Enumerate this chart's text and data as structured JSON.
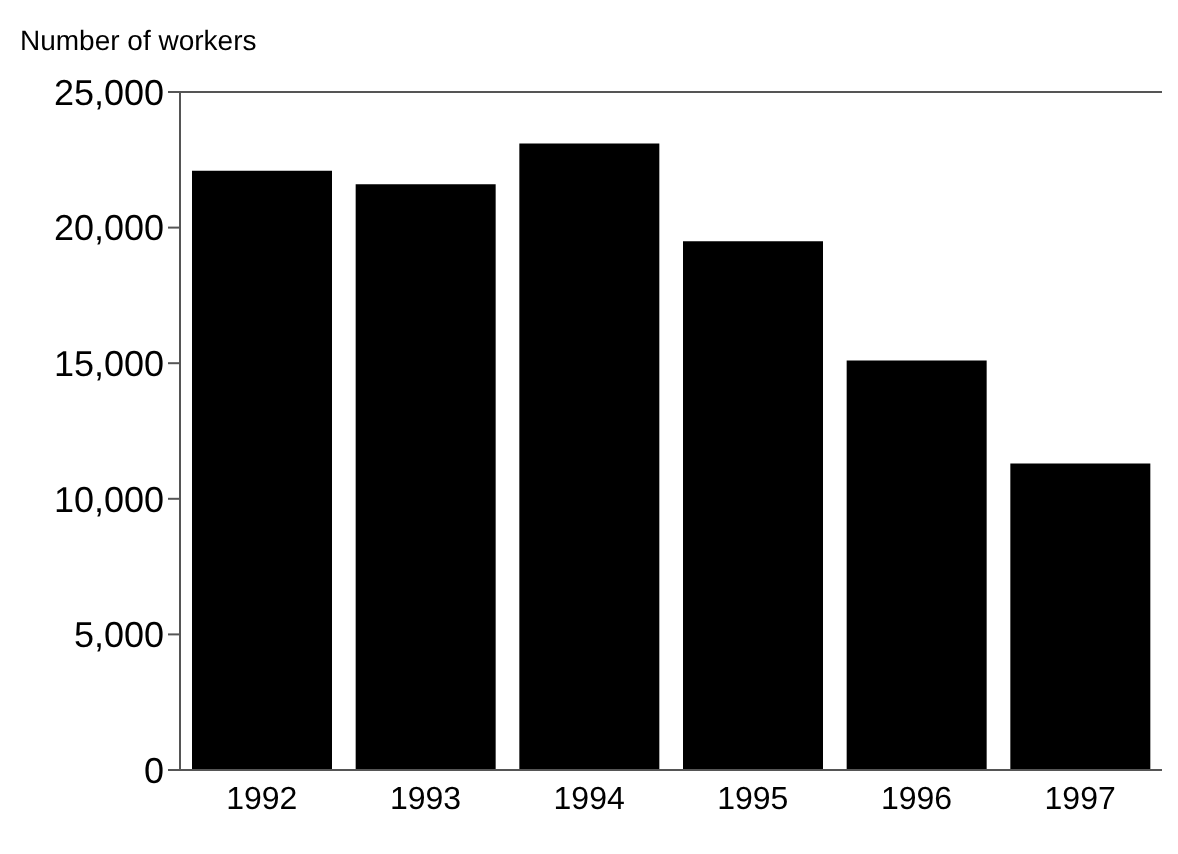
{
  "chart_data": {
    "type": "bar",
    "ylabel": "Number of workers",
    "categories": [
      "1992",
      "1993",
      "1994",
      "1995",
      "1996",
      "1997"
    ],
    "values": [
      22100,
      21600,
      23100,
      19500,
      15100,
      11300
    ],
    "color": "#000000",
    "ylim": [
      0,
      25000
    ],
    "yticks": [
      0,
      {
        "value": 5000,
        "label": "5,000"
      },
      {
        "value": 10000,
        "label": "10,000"
      },
      {
        "value": 15000,
        "label": "15,000"
      },
      {
        "value": 20000,
        "label": "20,000"
      },
      {
        "value": 25000,
        "label": "25,000"
      }
    ],
    "grid": false,
    "legend": false
  }
}
